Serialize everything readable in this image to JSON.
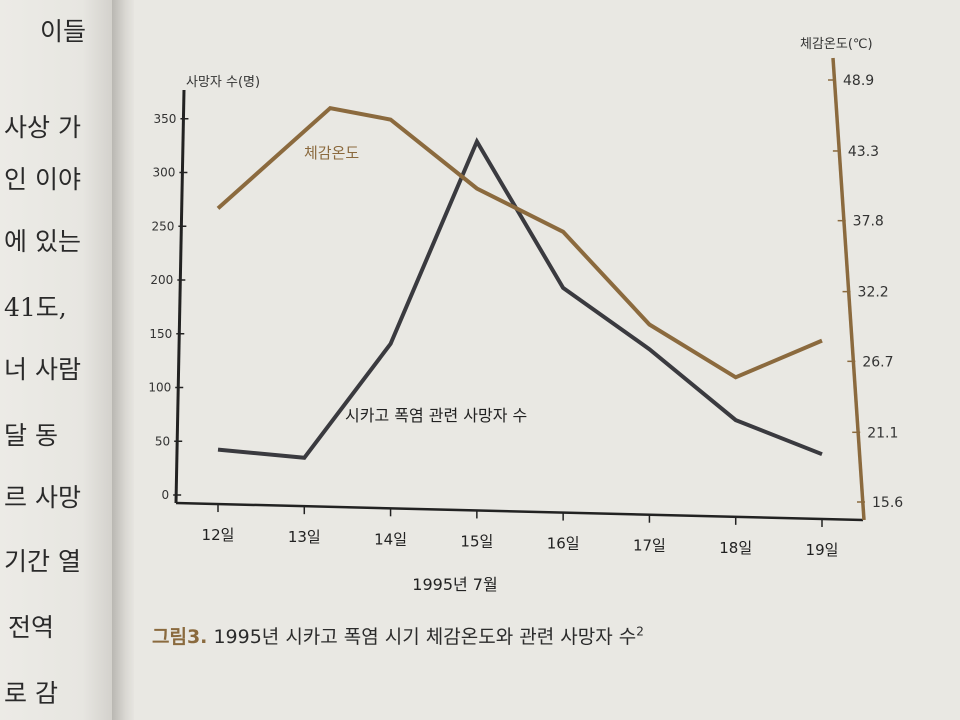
{
  "left_page": {
    "lines": [
      "이들",
      "사상 가",
      "인 이야",
      "에 있는",
      "41도,",
      "너 사람",
      "달 동",
      "르 사망",
      "기간 열",
      "전역",
      "로 감"
    ]
  },
  "caption": {
    "figure_no": "그림3.",
    "text": "1995년 시카고 폭염 시기 체감온도와 관련 사망자 수",
    "sup": "2"
  },
  "chart_data": {
    "type": "line",
    "categories": [
      "12일",
      "13일",
      "14일",
      "15일",
      "16일",
      "17일",
      "18일",
      "19일"
    ],
    "xlabel": "1995년 7월",
    "ylabel_left": "사망자 수(명)",
    "ylabel_right": "체감온도(℃)",
    "left_ticks": [
      "0",
      "50",
      "100",
      "150",
      "200",
      "250",
      "300",
      "350"
    ],
    "right_ticks": [
      "15.6",
      "21.1",
      "26.7",
      "32.2",
      "37.8",
      "43.3",
      "48.9"
    ],
    "series": [
      {
        "name": "시카고 폭염 관련 사망자 수",
        "axis": "left",
        "color": "#3a3a3f",
        "x": [
          12,
          13,
          14,
          15,
          16,
          17,
          18,
          19
        ],
        "values": [
          45,
          40,
          150,
          345,
          210,
          155,
          90,
          60
        ]
      },
      {
        "name": "체감온도",
        "axis": "right",
        "color": "#8b6a3e",
        "x": [
          12,
          13.3,
          14,
          15,
          16,
          17,
          18,
          19
        ],
        "values": [
          38.5,
          46.5,
          45.7,
          40.5,
          37.3,
          30.3,
          26.4,
          29.4
        ]
      }
    ]
  }
}
